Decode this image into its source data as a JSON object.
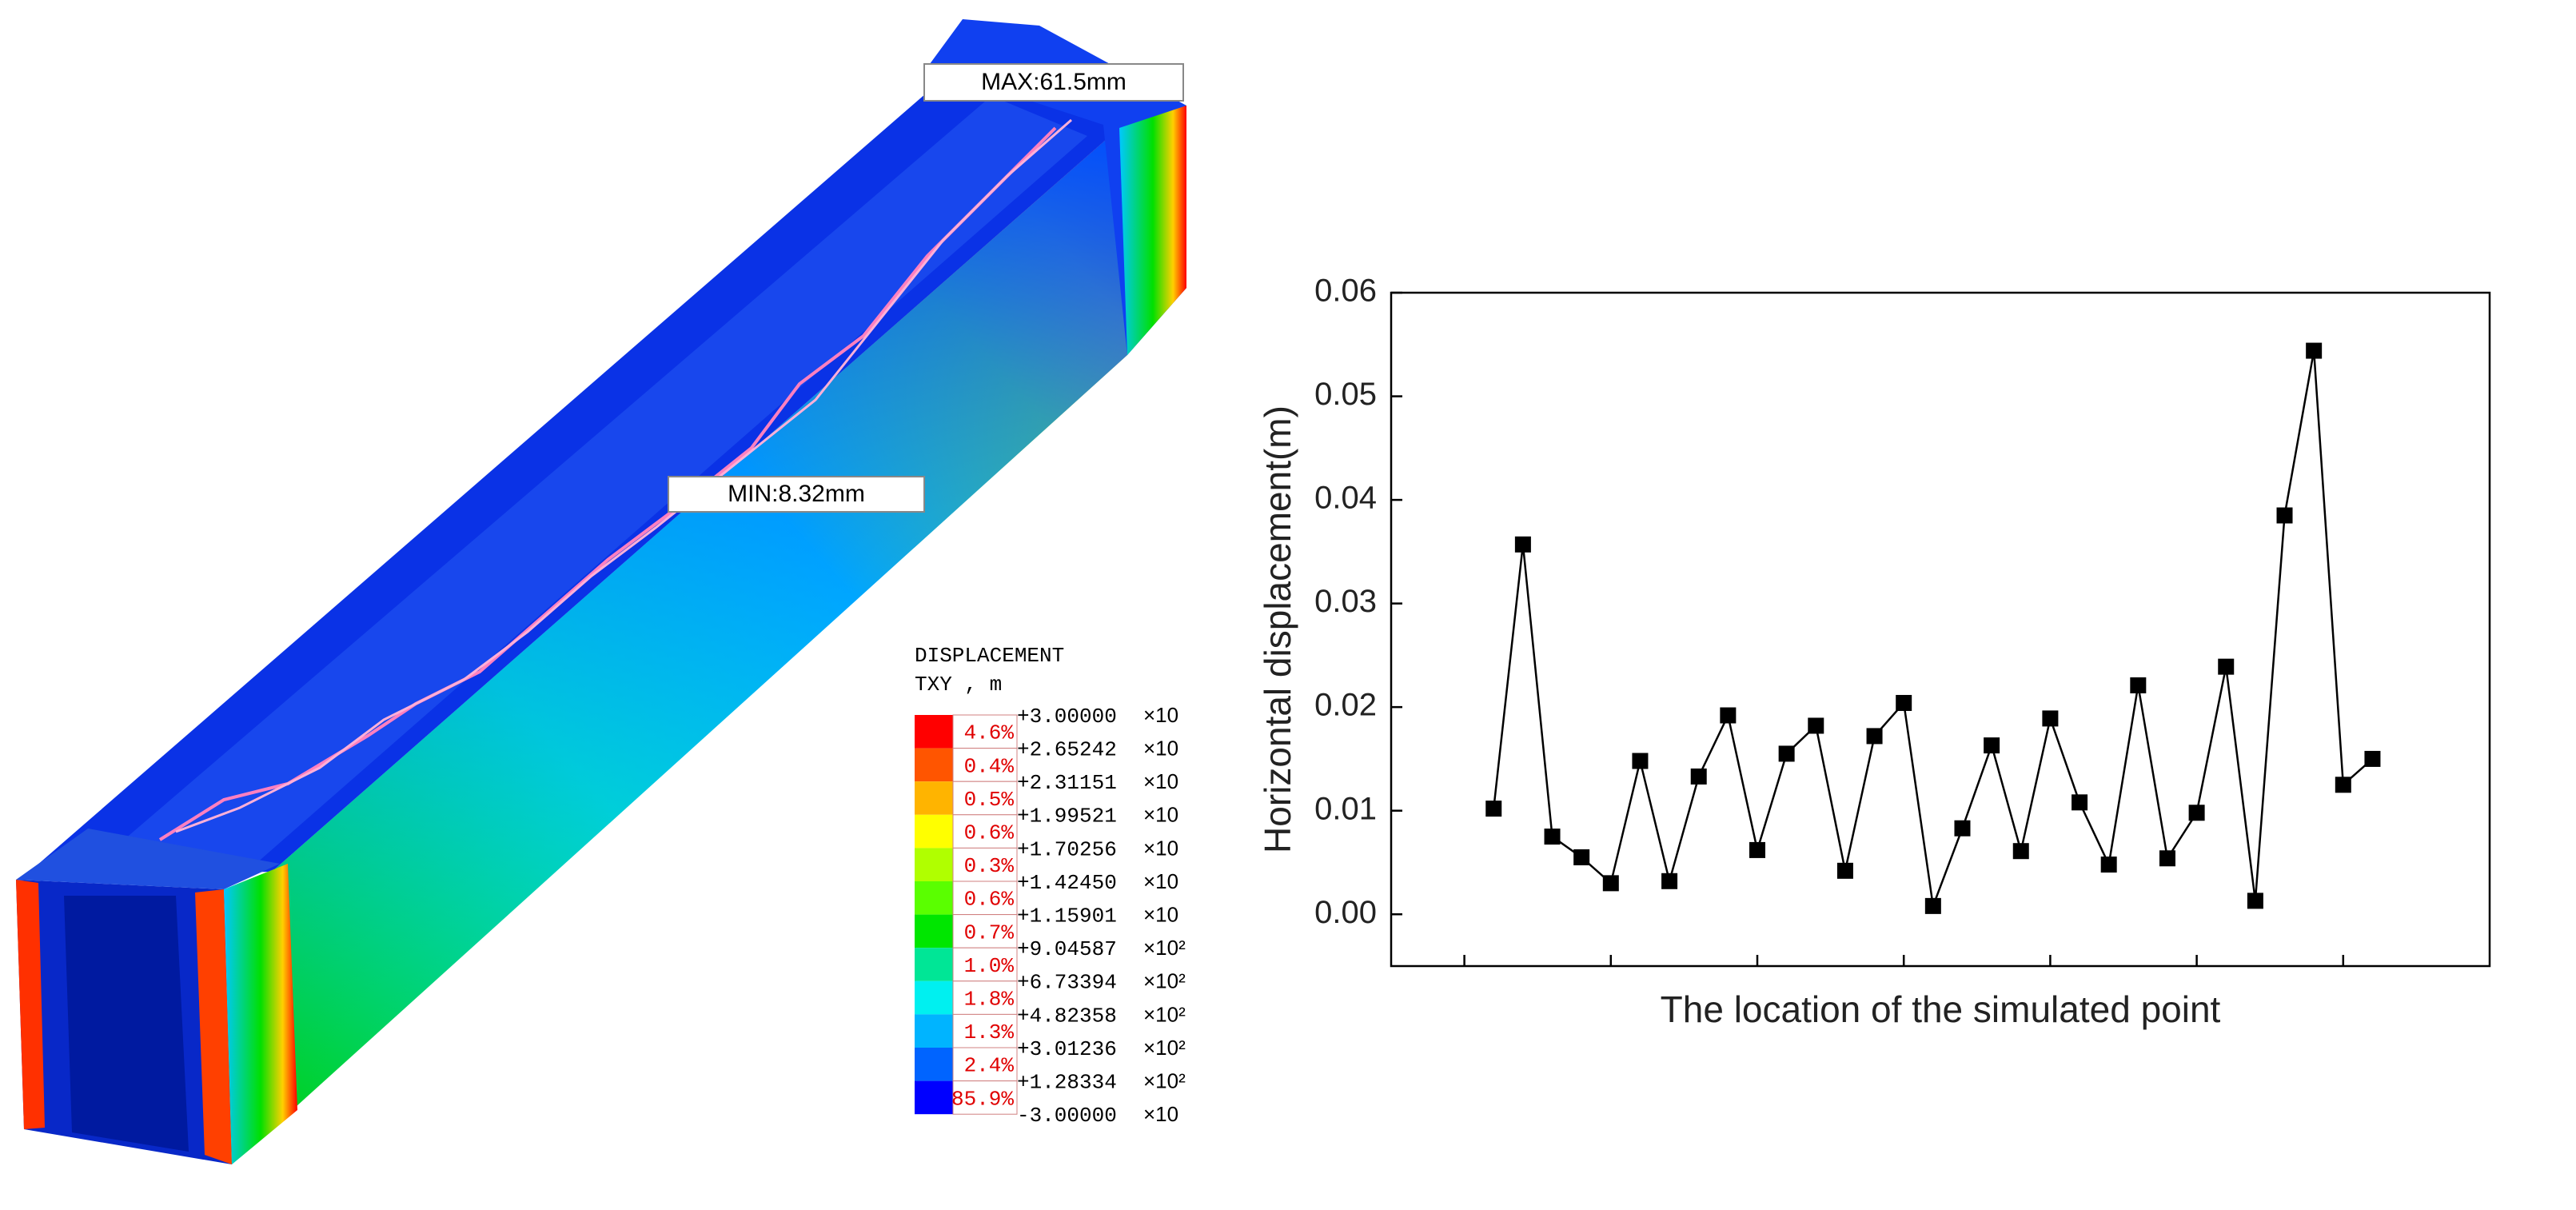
{
  "figure_left": {
    "max_label": "MAX:61.5mm",
    "min_label": "MIN:8.32mm",
    "legend": {
      "title": "DISPLACEMENT",
      "subtitle": "TXY , m",
      "colors": [
        "#ff0000",
        "#ff5500",
        "#ffb400",
        "#ffff00",
        "#b0ff00",
        "#5aff00",
        "#00e600",
        "#00e696",
        "#00f0f0",
        "#00b4ff",
        "#0064ff",
        "#0000ff"
      ],
      "percents": [
        "4.6%",
        "0.4%",
        "0.5%",
        "0.6%",
        "0.3%",
        "0.6%",
        "0.7%",
        "1.0%",
        "1.8%",
        "1.3%",
        "2.4%",
        "85.9%"
      ],
      "values": [
        "+3.00000",
        "+2.65242",
        "+2.31151",
        "+1.99521",
        "+1.70256",
        "+1.42450",
        "+1.15901",
        "+9.04587",
        "+6.73394",
        "+4.82358",
        "+3.01236",
        "+1.28334",
        "-3.00000"
      ],
      "exponents": [
        "×10",
        "×10",
        "×10",
        "×10",
        "×10",
        "×10",
        "×10",
        "×10²",
        "×10²",
        "×10²",
        "×10²",
        "×10²",
        "×10"
      ]
    }
  },
  "chart_data": {
    "type": "line",
    "xlabel": "The location of the simulated point",
    "ylabel": "Horizontal displacement(m)",
    "x": [
      1,
      2,
      3,
      4,
      5,
      6,
      7,
      8,
      9,
      10,
      11,
      12,
      13,
      14,
      15,
      16,
      17,
      18,
      19,
      20,
      21,
      22,
      23,
      24,
      25,
      26,
      27,
      28,
      29,
      30,
      31
    ],
    "values": [
      0.0102,
      0.0357,
      0.0075,
      0.0055,
      0.003,
      0.0148,
      0.0032,
      0.0133,
      0.0192,
      0.0062,
      0.0155,
      0.0182,
      0.0042,
      0.0172,
      0.0204,
      0.0008,
      0.0083,
      0.0163,
      0.0061,
      0.0189,
      0.0108,
      0.0048,
      0.0221,
      0.0054,
      0.0098,
      0.0239,
      0.0013,
      0.0385,
      0.0544,
      0.0125,
      0.015
    ],
    "color": "#000000",
    "marker": "square",
    "xlim": [
      -2.5,
      35
    ],
    "xticks": [
      0,
      5,
      10,
      15,
      20,
      25,
      30
    ],
    "ylim": [
      -0.005,
      0.06
    ],
    "yticks": [
      {
        "value": 0,
        "label": "0.00"
      },
      0.01,
      0.02,
      0.03,
      0.04,
      0.05,
      0.06
    ]
  }
}
